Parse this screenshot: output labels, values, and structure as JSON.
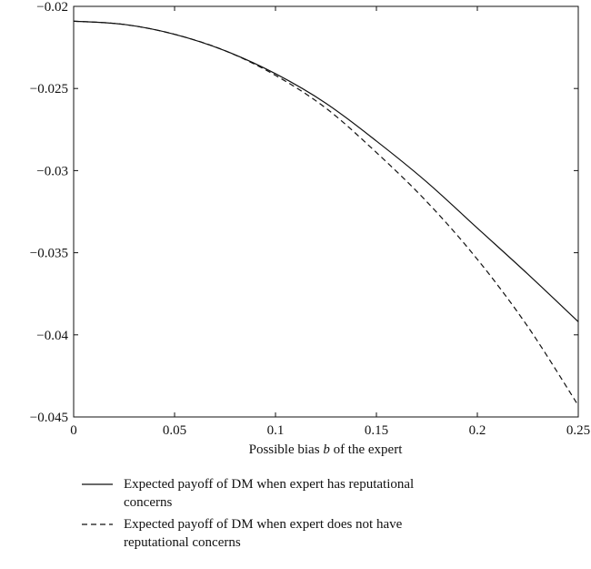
{
  "chart_data": {
    "type": "line",
    "xlabel_parts": [
      "Possible bias ",
      "b",
      " of the expert"
    ],
    "xlim": [
      0,
      0.25
    ],
    "ylim": [
      -0.045,
      -0.02
    ],
    "x_ticks": [
      0,
      0.05,
      0.1,
      0.15,
      0.2,
      0.25
    ],
    "x_tick_labels": [
      "0",
      "0.05",
      "0.1",
      "0.15",
      "0.2",
      "0.25"
    ],
    "y_ticks": [
      -0.045,
      -0.04,
      -0.035,
      -0.03,
      -0.025,
      -0.02
    ],
    "y_tick_labels": [
      "−0.045",
      "−0.04",
      "−0.035",
      "−0.03",
      "−0.025",
      "−0.02"
    ],
    "grid": false,
    "legend_position": "below",
    "x": [
      0,
      0.025,
      0.05,
      0.075,
      0.1,
      0.125,
      0.15,
      0.175,
      0.2,
      0.225,
      0.25
    ],
    "series": [
      {
        "name": "Expected payoff of DM when expert has reputational concerns",
        "style": "solid",
        "color": "#111111",
        "values": [
          -0.0209,
          -0.0211,
          -0.0217,
          -0.0227,
          -0.0241,
          -0.0259,
          -0.0282,
          -0.0307,
          -0.0335,
          -0.0363,
          -0.0392
        ]
      },
      {
        "name": "Expected payoff of DM when expert does not have reputational concerns",
        "style": "dashed",
        "color": "#111111",
        "values": [
          -0.0209,
          -0.0211,
          -0.0217,
          -0.0227,
          -0.0242,
          -0.0262,
          -0.0289,
          -0.0319,
          -0.0354,
          -0.0395,
          -0.0443
        ]
      }
    ]
  }
}
